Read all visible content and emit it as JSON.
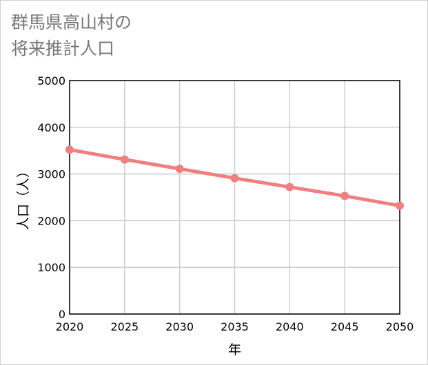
{
  "chart_data": {
    "type": "line",
    "title": [
      "群馬県高山村の",
      "将来推計人口"
    ],
    "xlabel": "年",
    "ylabel": "人口（人）",
    "x": [
      2020,
      2025,
      2030,
      2035,
      2040,
      2045,
      2050
    ],
    "series": [
      {
        "name": "将来推計人口",
        "values": [
          3520,
          3310,
          3110,
          2910,
          2720,
          2530,
          2320
        ]
      }
    ],
    "xlim": [
      2020,
      2050
    ],
    "ylim": [
      0,
      5000
    ],
    "xticks": [
      "2020",
      "2025",
      "2030",
      "2035",
      "2040",
      "2045",
      "2050"
    ],
    "yticks": [
      "0",
      "1000",
      "2000",
      "3000",
      "4000",
      "5000"
    ],
    "grid": true,
    "colors": {
      "line": "#f08080",
      "grid": "#cccccc",
      "axis": "#000000",
      "title": "#777777"
    }
  }
}
